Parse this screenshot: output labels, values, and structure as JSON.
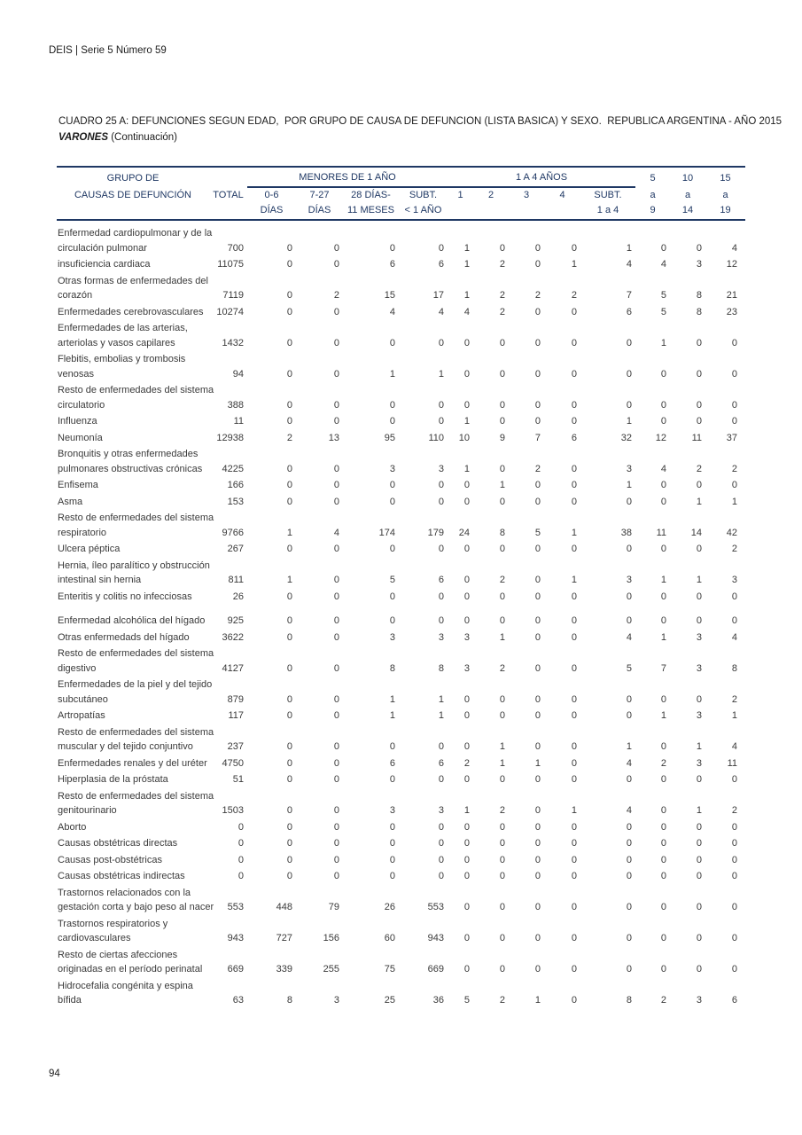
{
  "page": {
    "header": "DEIS | Serie 5 Número 59",
    "page_number": "94"
  },
  "colors": {
    "header_navy": "#1f3864",
    "body_text": "#3a3a3a"
  },
  "title": {
    "line1": "CUADRO 25 A: DEFUNCIONES SEGUN EDAD,  POR GRUPO DE CAUSA DE DEFUNCION (LISTA BASICA) Y SEXO.  REPUBLICA ARGENTINA - AÑO 2015",
    "line2_bold": "VARONES",
    "line2_rest": " (Continuación)"
  },
  "table": {
    "head": {
      "col1_line1": "GRUPO DE",
      "col1_line2": "CAUSAS DE DEFUNCIÓN",
      "group1": "MENORES DE 1 AÑO",
      "group2": "1 A 4 AÑOS"
    },
    "columns": [
      {
        "l1": "",
        "l2": "TOTAL",
        "l3": ""
      },
      {
        "l1": "",
        "l2": "0-6",
        "l3": "DÍAS"
      },
      {
        "l1": "",
        "l2": "7-27",
        "l3": "DÍAS"
      },
      {
        "l1": "",
        "l2": "28 DÍAS-",
        "l3": "11 MESES"
      },
      {
        "l1": "",
        "l2": "SUBT.",
        "l3": "< 1 AÑO"
      },
      {
        "l1": "",
        "l2": "1",
        "l3": ""
      },
      {
        "l1": "",
        "l2": "2",
        "l3": ""
      },
      {
        "l1": "",
        "l2": "3",
        "l3": ""
      },
      {
        "l1": "",
        "l2": "4",
        "l3": ""
      },
      {
        "l1": "",
        "l2": "SUBT.",
        "l3": "1 a 4"
      },
      {
        "l1": "5",
        "l2": "a",
        "l3": "9"
      },
      {
        "l1": "10",
        "l2": "a",
        "l3": "14"
      },
      {
        "l1": "15",
        "l2": "a",
        "l3": "19"
      }
    ],
    "rows": [
      {
        "label": "Enfermedad cardiopulmonar y de la\ncirculación pulmonar",
        "values": [
          700,
          0,
          0,
          0,
          0,
          1,
          0,
          0,
          0,
          1,
          0,
          0,
          4
        ]
      },
      {
        "label": "insuficiencia cardiaca",
        "values": [
          11075,
          0,
          0,
          6,
          6,
          1,
          2,
          0,
          1,
          4,
          4,
          3,
          12
        ]
      },
      {
        "label": "Otras formas de enfermedades del\ncorazón",
        "values": [
          7119,
          0,
          2,
          15,
          17,
          1,
          2,
          2,
          2,
          7,
          5,
          8,
          21
        ]
      },
      {
        "label": "Enfermedades cerebrovasculares",
        "values": [
          10274,
          0,
          0,
          4,
          4,
          4,
          2,
          0,
          0,
          6,
          5,
          8,
          23
        ]
      },
      {
        "label": "Enfermedades de las arterias,\narteriolas y vasos capilares",
        "values": [
          1432,
          0,
          0,
          0,
          0,
          0,
          0,
          0,
          0,
          0,
          1,
          0,
          0
        ]
      },
      {
        "label": "Flebitis, embolias y trombosis\nvenosas",
        "values": [
          94,
          0,
          0,
          1,
          1,
          0,
          0,
          0,
          0,
          0,
          0,
          0,
          0
        ]
      },
      {
        "label": "Resto de enfermedades del sistema\ncirculatorio",
        "values": [
          388,
          0,
          0,
          0,
          0,
          0,
          0,
          0,
          0,
          0,
          0,
          0,
          0
        ]
      },
      {
        "label": "Influenza",
        "values": [
          11,
          0,
          0,
          0,
          0,
          1,
          0,
          0,
          0,
          1,
          0,
          0,
          0
        ]
      },
      {
        "label": "Neumonía",
        "values": [
          12938,
          2,
          13,
          95,
          110,
          10,
          9,
          7,
          6,
          32,
          12,
          11,
          37
        ]
      },
      {
        "label": "Bronquitis y otras enfermedades\npulmonares obstructivas crónicas",
        "values": [
          4225,
          0,
          0,
          3,
          3,
          1,
          0,
          2,
          0,
          3,
          4,
          2,
          2
        ]
      },
      {
        "label": "Enfisema",
        "values": [
          166,
          0,
          0,
          0,
          0,
          0,
          1,
          0,
          0,
          1,
          0,
          0,
          0
        ]
      },
      {
        "label": "Asma",
        "values": [
          153,
          0,
          0,
          0,
          0,
          0,
          0,
          0,
          0,
          0,
          0,
          1,
          1
        ]
      },
      {
        "label": "Resto de enfermedades del sistema\nrespiratorio",
        "values": [
          9766,
          1,
          4,
          174,
          179,
          24,
          8,
          5,
          1,
          38,
          11,
          14,
          42
        ]
      },
      {
        "label": "Ulcera péptica",
        "values": [
          267,
          0,
          0,
          0,
          0,
          0,
          0,
          0,
          0,
          0,
          0,
          0,
          2
        ]
      },
      {
        "label": "Hernia, íleo paralítico y obstrucción\nintestinal sin hernia",
        "values": [
          811,
          1,
          0,
          5,
          6,
          0,
          2,
          0,
          1,
          3,
          1,
          1,
          3
        ]
      },
      {
        "label": "Enteritis y colitis no infecciosas",
        "values": [
          26,
          0,
          0,
          0,
          0,
          0,
          0,
          0,
          0,
          0,
          0,
          0,
          0
        ]
      },
      {
        "label": "Enfermedad alcohólica del hígado",
        "values": [
          925,
          0,
          0,
          0,
          0,
          0,
          0,
          0,
          0,
          0,
          0,
          0,
          0
        ],
        "gap_before": true
      },
      {
        "label": "Otras enfermedads del hígado",
        "values": [
          3622,
          0,
          0,
          3,
          3,
          3,
          1,
          0,
          0,
          4,
          1,
          3,
          4
        ]
      },
      {
        "label": "Resto de enfermedades del sistema\ndigestivo",
        "values": [
          4127,
          0,
          0,
          8,
          8,
          3,
          2,
          0,
          0,
          5,
          7,
          3,
          8
        ]
      },
      {
        "label": "Enfermedades de la piel y del tejido\nsubcutáneo",
        "values": [
          879,
          0,
          0,
          1,
          1,
          0,
          0,
          0,
          0,
          0,
          0,
          0,
          2
        ]
      },
      {
        "label": "Artropatías",
        "values": [
          117,
          0,
          0,
          1,
          1,
          0,
          0,
          0,
          0,
          0,
          1,
          3,
          1
        ]
      },
      {
        "label": "Resto de enfermedades del sistema\nmuscular y del tejido conjuntivo",
        "values": [
          237,
          0,
          0,
          0,
          0,
          0,
          1,
          0,
          0,
          1,
          0,
          1,
          4
        ]
      },
      {
        "label": "Enfermedades renales y del uréter",
        "values": [
          4750,
          0,
          0,
          6,
          6,
          2,
          1,
          1,
          0,
          4,
          2,
          3,
          11
        ]
      },
      {
        "label": "Hiperplasia de la próstata",
        "values": [
          51,
          0,
          0,
          0,
          0,
          0,
          0,
          0,
          0,
          0,
          0,
          0,
          0
        ]
      },
      {
        "label": "Resto de enfermedades del sistema\ngenitourinario",
        "values": [
          1503,
          0,
          0,
          3,
          3,
          1,
          2,
          0,
          1,
          4,
          0,
          1,
          2
        ]
      },
      {
        "label": "Aborto",
        "values": [
          0,
          0,
          0,
          0,
          0,
          0,
          0,
          0,
          0,
          0,
          0,
          0,
          0
        ]
      },
      {
        "label": "Causas obstétricas directas",
        "values": [
          0,
          0,
          0,
          0,
          0,
          0,
          0,
          0,
          0,
          0,
          0,
          0,
          0
        ]
      },
      {
        "label": "Causas post-obstétricas",
        "values": [
          0,
          0,
          0,
          0,
          0,
          0,
          0,
          0,
          0,
          0,
          0,
          0,
          0
        ]
      },
      {
        "label": "Causas obstétricas indirectas",
        "values": [
          0,
          0,
          0,
          0,
          0,
          0,
          0,
          0,
          0,
          0,
          0,
          0,
          0
        ]
      },
      {
        "label": "Trastornos relacionados con la\ngestación corta y bajo peso al nacer",
        "values": [
          553,
          448,
          79,
          26,
          553,
          0,
          0,
          0,
          0,
          0,
          0,
          0,
          0
        ]
      },
      {
        "label": "Trastornos respiratorios y\ncardiovasculares",
        "values": [
          943,
          727,
          156,
          60,
          943,
          0,
          0,
          0,
          0,
          0,
          0,
          0,
          0
        ]
      },
      {
        "label": "Resto de ciertas afecciones\noriginadas en el período perinatal",
        "values": [
          669,
          339,
          255,
          75,
          669,
          0,
          0,
          0,
          0,
          0,
          0,
          0,
          0
        ]
      },
      {
        "label": "Hidrocefalia congénita y espina\nbífida",
        "values": [
          63,
          8,
          3,
          25,
          36,
          5,
          2,
          1,
          0,
          8,
          2,
          3,
          6
        ]
      }
    ]
  }
}
